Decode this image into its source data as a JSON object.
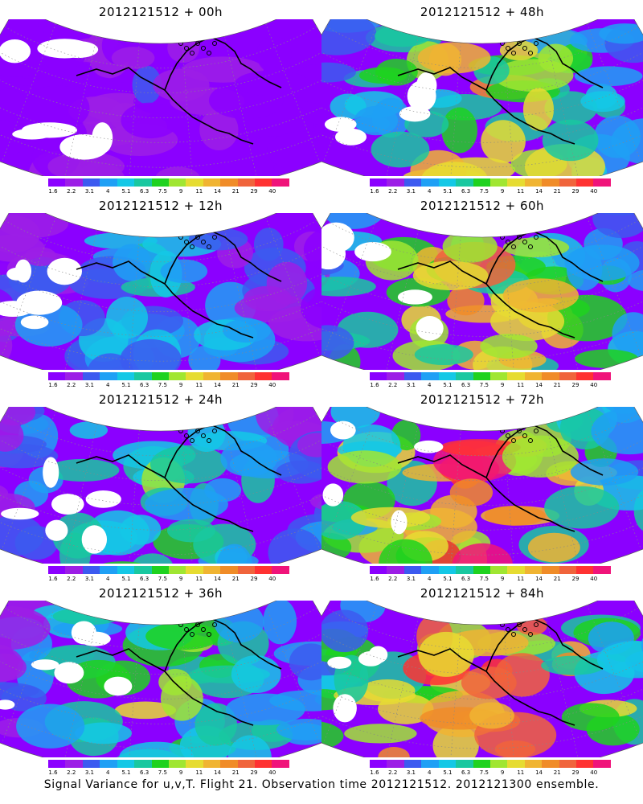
{
  "caption": "Signal Variance for u,v,T. Flight 21. Observation time 2012121512. 2012121300 ensemble.",
  "panels": [
    {
      "title": "2012121512 + 00h",
      "level": 0.15
    },
    {
      "title": "2012121512 + 12h",
      "level": 0.35
    },
    {
      "title": "2012121512 + 24h",
      "level": 0.45
    },
    {
      "title": "2012121512 + 36h",
      "level": 0.5
    },
    {
      "title": "2012121512 + 48h",
      "level": 0.62
    },
    {
      "title": "2012121512 + 60h",
      "level": 0.68
    },
    {
      "title": "2012121512 + 72h",
      "level": 0.78
    },
    {
      "title": "2012121512 + 84h",
      "level": 0.85
    }
  ],
  "colorbar": {
    "ticks": [
      "1.6",
      "2.2",
      "3.1",
      "4",
      "5.1",
      "6.3",
      "7.5",
      "9",
      "11",
      "14",
      "21",
      "29",
      "40"
    ],
    "colors": [
      "#8b00ff",
      "#9c1ee6",
      "#3c5af0",
      "#1fa0f5",
      "#14c8e6",
      "#19c8a0",
      "#1fd21f",
      "#a0e632",
      "#e6dc32",
      "#f0b432",
      "#f08c28",
      "#f0643c",
      "#ff3232",
      "#f0147a"
    ]
  }
}
